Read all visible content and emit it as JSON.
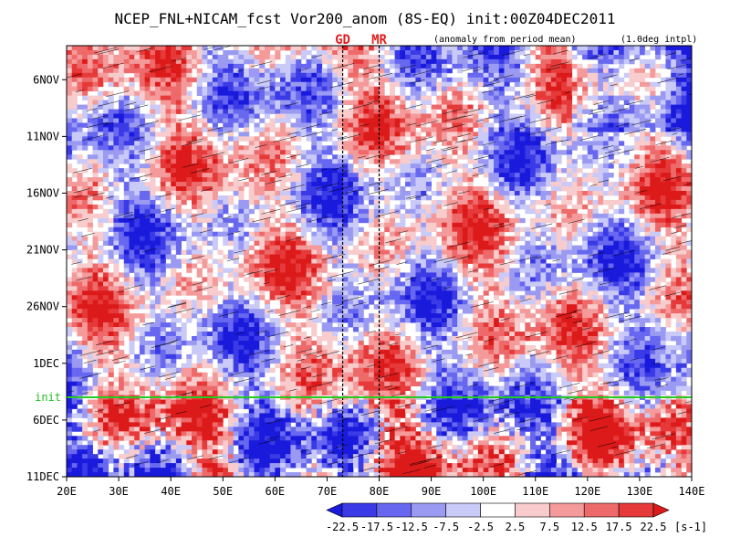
{
  "chart_data": {
    "type": "heatmap",
    "title": "NCEP_FNL+NICAM_fcst Vor200_anom (8S-EQ) init:00Z04DEC2011",
    "subtitle_left": "(anomaly from period mean)",
    "subtitle_right": "(1.0deg intpl)",
    "x_axis": {
      "range": [
        20,
        140
      ],
      "unit": "degE",
      "ticks": [
        20,
        30,
        40,
        50,
        60,
        70,
        80,
        90,
        100,
        110,
        120,
        130,
        140
      ],
      "tick_labels": [
        "20E",
        "30E",
        "40E",
        "50E",
        "60E",
        "70E",
        "80E",
        "90E",
        "100E",
        "110E",
        "120E",
        "130E",
        "140E"
      ]
    },
    "y_axis": {
      "range_days": [
        "2011-11-03",
        "2011-12-11"
      ],
      "orientation": "time increases downward",
      "ticks": [
        "2011-11-06",
        "2011-11-11",
        "2011-11-16",
        "2011-11-21",
        "2011-11-26",
        "2011-12-01",
        "2011-12-06",
        "2011-12-11"
      ],
      "tick_labels": [
        "6NOV",
        "11NOV",
        "16NOV",
        "21NOV",
        "26NOV",
        "1DEC",
        "6DEC",
        "11DEC"
      ]
    },
    "markers": [
      {
        "label": "GD",
        "lon": 73
      },
      {
        "label": "MR",
        "lon": 80
      }
    ],
    "init_line": {
      "label": "init",
      "date": "2011-12-04",
      "color": "#22cc22"
    },
    "colorbar": {
      "levels": [
        "-22.5",
        "-17.5",
        "-12.5",
        "-7.5",
        "-2.5",
        "2.5",
        "7.5",
        "12.5",
        "17.5",
        "22.5"
      ],
      "unit": "[s-1]",
      "colors": [
        "#1a1adc",
        "#3a3ae6",
        "#6767f0",
        "#9a9af2",
        "#cacaf8",
        "#ffffff",
        "#f8cccc",
        "#f49a9a",
        "#ee6a6a",
        "#e63a3a",
        "#dc1a1a"
      ]
    },
    "grid": false
  }
}
